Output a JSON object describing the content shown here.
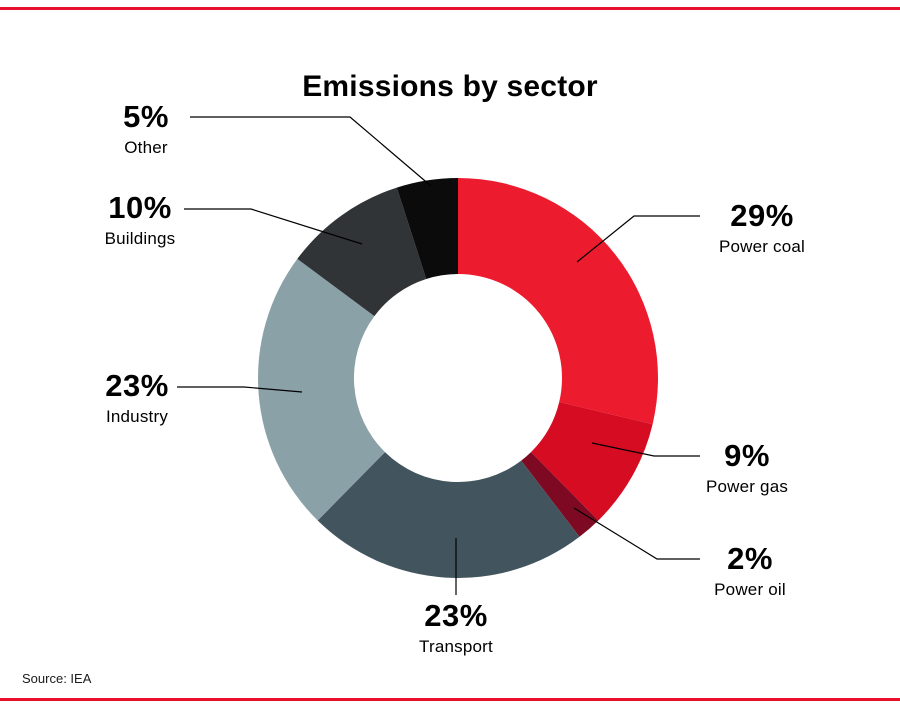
{
  "title": "Emissions by sector",
  "source": "Source: IEA",
  "accent_color": "#e8112d",
  "chart_data": {
    "type": "pie",
    "variant": "donut",
    "title": "Emissions by sector",
    "units": "%",
    "start_angle_deg": -90,
    "direction": "clockwise",
    "inner_radius_ratio": 0.52,
    "legend_position": "callout-labels",
    "segments": [
      {
        "label": "Power coal",
        "value": 29,
        "display": "29%",
        "color": "#ed1b2e"
      },
      {
        "label": "Power gas",
        "value": 9,
        "display": "9%",
        "color": "#d50c22"
      },
      {
        "label": "Power oil",
        "value": 2,
        "display": "2%",
        "color": "#7d0a22"
      },
      {
        "label": "Transport",
        "value": 23,
        "display": "23%",
        "color": "#42545d"
      },
      {
        "label": "Industry",
        "value": 23,
        "display": "23%",
        "color": "#8ba1a8"
      },
      {
        "label": "Buildings",
        "value": 10,
        "display": "10%",
        "color": "#313437"
      },
      {
        "label": "Other",
        "value": 5,
        "display": "5%",
        "color": "#0b0b0b"
      }
    ]
  }
}
